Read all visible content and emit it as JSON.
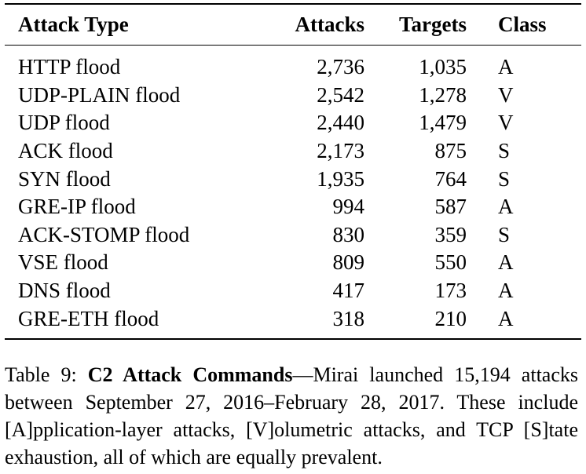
{
  "table": {
    "headers": {
      "attack_type": "Attack Type",
      "attacks": "Attacks",
      "targets": "Targets",
      "class": "Class"
    },
    "rows": [
      {
        "attack_type": "HTTP flood",
        "attacks": "2,736",
        "targets": "1,035",
        "class": "A"
      },
      {
        "attack_type": "UDP-PLAIN flood",
        "attacks": "2,542",
        "targets": "1,278",
        "class": "V"
      },
      {
        "attack_type": "UDP flood",
        "attacks": "2,440",
        "targets": "1,479",
        "class": "V"
      },
      {
        "attack_type": "ACK flood",
        "attacks": "2,173",
        "targets": "875",
        "class": "S"
      },
      {
        "attack_type": "SYN flood",
        "attacks": "1,935",
        "targets": "764",
        "class": "S"
      },
      {
        "attack_type": "GRE-IP flood",
        "attacks": "994",
        "targets": "587",
        "class": "A"
      },
      {
        "attack_type": "ACK-STOMP flood",
        "attacks": "830",
        "targets": "359",
        "class": "S"
      },
      {
        "attack_type": "VSE flood",
        "attacks": "809",
        "targets": "550",
        "class": "A"
      },
      {
        "attack_type": "DNS flood",
        "attacks": "417",
        "targets": "173",
        "class": "A"
      },
      {
        "attack_type": "GRE-ETH flood",
        "attacks": "318",
        "targets": "210",
        "class": "A"
      }
    ]
  },
  "caption": {
    "label": "Table 9:",
    "title": "C2 Attack Commands",
    "separator": "—",
    "text": "Mirai launched 15,194 attacks between September 27, 2016–February 28, 2017. These include [A]pplication-layer attacks, [V]olumetric attacks, and TCP [S]tate exhaustion, all of which are equally prevalent."
  }
}
